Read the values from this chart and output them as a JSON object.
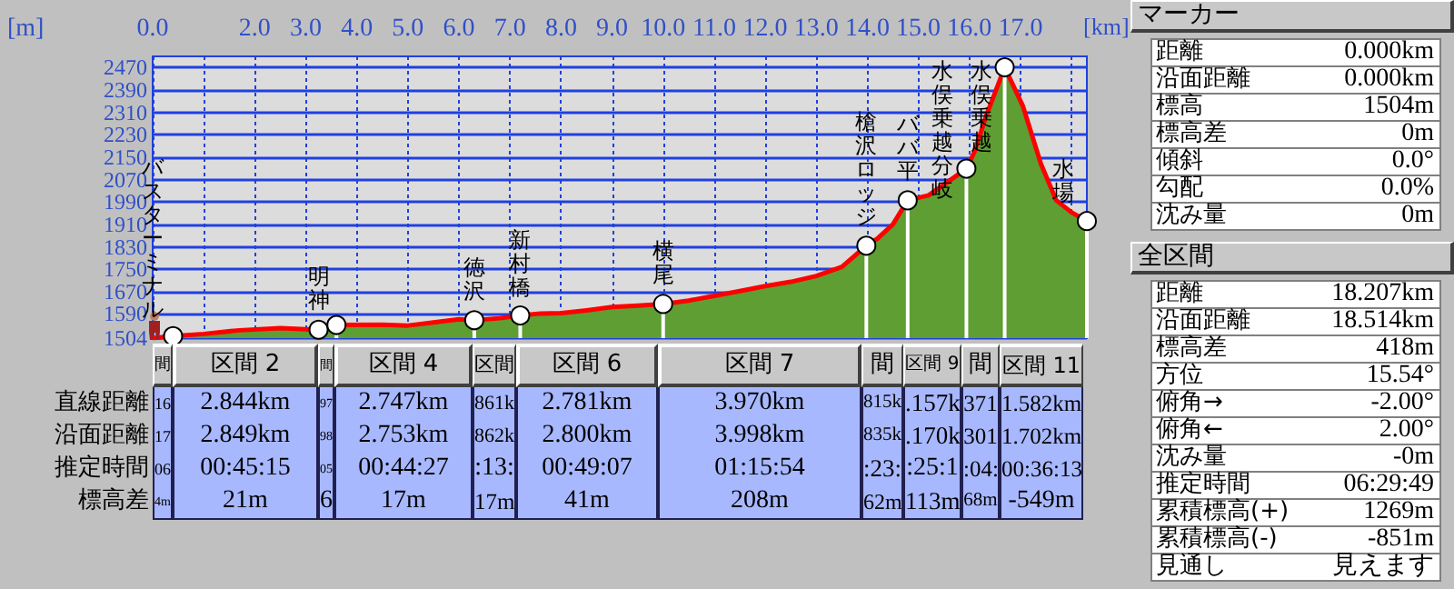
{
  "chart_data": [
    {
      "type": "area",
      "xlabel": "[km]",
      "ylabel": "[m]",
      "xlim": [
        0,
        18.3
      ],
      "ylim": [
        1504,
        2510
      ],
      "xticks": [
        {
          "value": 0,
          "label": "0.0"
        },
        {
          "value": 1,
          "label": null
        },
        {
          "value": 2,
          "label": "2.0"
        },
        {
          "value": 3,
          "label": "3.0"
        },
        {
          "value": 4,
          "label": "4.0"
        },
        {
          "value": 5,
          "label": "5.0"
        },
        {
          "value": 6,
          "label": "6.0"
        },
        {
          "value": 7,
          "label": "7.0"
        },
        {
          "value": 8,
          "label": "8.0"
        },
        {
          "value": 9,
          "label": "9.0"
        },
        {
          "value": 10,
          "label": "10.0"
        },
        {
          "value": 11,
          "label": "11.0"
        },
        {
          "value": 12,
          "label": "12.0"
        },
        {
          "value": 13,
          "label": "13.0"
        },
        {
          "value": 14,
          "label": "14.0"
        },
        {
          "value": 15,
          "label": "15.0"
        },
        {
          "value": 16,
          "label": "16.0"
        },
        {
          "value": 17,
          "label": "17.0"
        },
        {
          "value": 18,
          "label": null
        }
      ],
      "yticks": [
        1504,
        1590,
        1670,
        1750,
        1830,
        1910,
        1990,
        2070,
        2150,
        2230,
        2310,
        2390,
        2470
      ],
      "grid": true,
      "series": [
        {
          "type": "area",
          "color": "#5f9e32",
          "x": [
            0,
            0.4,
            1.0,
            1.7,
            2.5,
            3.0,
            3.25,
            3.6,
            4.5,
            5.0,
            5.5,
            6.0,
            6.3,
            6.8,
            7.2,
            7.6,
            8.0,
            8.5,
            9.0,
            9.5,
            10.0,
            10.5,
            11.0,
            11.5,
            12.0,
            12.5,
            13.0,
            13.5,
            13.98,
            14.2,
            14.5,
            14.79,
            15.2,
            15.6,
            15.94,
            16.1,
            16.33,
            16.69,
            17.05,
            17.4,
            17.7,
            18.0,
            18.3
          ],
          "values": [
            1504,
            1511,
            1519,
            1532,
            1540,
            1536,
            1534,
            1551,
            1552,
            1549,
            1560,
            1571,
            1568,
            1575,
            1585,
            1592,
            1593,
            1603,
            1615,
            1620,
            1626,
            1638,
            1655,
            1672,
            1690,
            1705,
            1726,
            1758,
            1834,
            1860,
            1910,
            1996,
            2014,
            2065,
            2109,
            2170,
            2299,
            2471,
            2331,
            2126,
            1996,
            1953,
            1922
          ]
        },
        {
          "type": "lollipop",
          "color": "#ffffff",
          "marker": "circle",
          "x": [
            0.4,
            3.25,
            3.6,
            6.3,
            7.2,
            10.0,
            13.98,
            14.79,
            15.94,
            16.69,
            18.3
          ],
          "values": [
            1511,
            1534,
            1551,
            1568,
            1585,
            1626,
            1834,
            1996,
            2109,
            2471,
            1922
          ]
        }
      ],
      "annotations": [
        {
          "text": "バスターミナル",
          "x": 0,
          "y": 1504
        },
        {
          "text": "明神",
          "x": 3.25,
          "y": 1534
        },
        {
          "text": "徳沢",
          "x": 6.3,
          "y": 1568
        },
        {
          "text": "新村橋",
          "x": 7.2,
          "y": 1585
        },
        {
          "text": "横尾",
          "x": 10.0,
          "y": 1626
        },
        {
          "text": "槍沢ロッジ",
          "x": 13.98,
          "y": 1834
        },
        {
          "text": "ババ平",
          "x": 14.79,
          "y": 1996
        },
        {
          "text": "水俣乗越分岐",
          "x": 15.94,
          "y": 2109
        },
        {
          "text": "水俣乗越",
          "x": 16.69,
          "y": 2471
        },
        {
          "text": "水場",
          "x": 18.3,
          "y": 1922
        }
      ]
    },
    {
      "type": "other",
      "categories": [
        "間",
        "区間 2",
        "間",
        "区間 4",
        "区間",
        "区間 6",
        "区間 7",
        "間",
        "区間 9",
        "間",
        "区間 11"
      ],
      "y_categories": [
        "直線距離",
        "沿面距離",
        "推定時間",
        "標高差"
      ],
      "cell_labels": [
        [
          "16",
          "2.844km",
          "97",
          "2.747km",
          "861k",
          "2.781km",
          "3.970km",
          "815k",
          ".157k",
          "371",
          "1.582km"
        ],
        [
          "17",
          "2.849km",
          "98",
          "2.753km",
          "862k",
          "2.800km",
          "3.998km",
          "835k",
          ".170k",
          "301",
          "1.702km"
        ],
        [
          "06",
          "00:45:15",
          "05",
          "00:44:27",
          ":13:",
          "00:49:07",
          "01:15:54",
          ":23:",
          ":25:1",
          ":04:",
          "00:36:13"
        ],
        [
          "4m",
          "21m",
          "6",
          "17m",
          "17m",
          "41m",
          "208m",
          "62m",
          "113m",
          "68m",
          "-549m"
        ]
      ]
    },
    {
      "type": "other",
      "title": "マーカー",
      "y_categories": [
        "距離",
        "沿面距離",
        "標高",
        "標高差",
        "傾斜",
        "勾配",
        "沈み量"
      ],
      "cell_labels": [
        [
          "0.000km"
        ],
        [
          "0.000km"
        ],
        [
          "1504m"
        ],
        [
          "0m"
        ],
        [
          "0.0°"
        ],
        [
          "0.0%"
        ],
        [
          "0m"
        ]
      ]
    },
    {
      "type": "other",
      "title": "全区間",
      "y_categories": [
        "距離",
        "沿面距離",
        "標高差",
        "方位",
        "俯角→",
        "俯角←",
        "沈み量",
        "推定時間",
        "累積標高(+)",
        "累積標高(-)",
        "見通し"
      ],
      "cell_labels": [
        [
          "18.207km"
        ],
        [
          "18.514km"
        ],
        [
          "418m"
        ],
        [
          "15.54°"
        ],
        [
          "-2.00°"
        ],
        [
          "2.00°"
        ],
        [
          "-0m"
        ],
        [
          "06:29:49"
        ],
        [
          "1269m"
        ],
        [
          "-851m"
        ],
        [
          "見えます"
        ]
      ]
    }
  ]
}
